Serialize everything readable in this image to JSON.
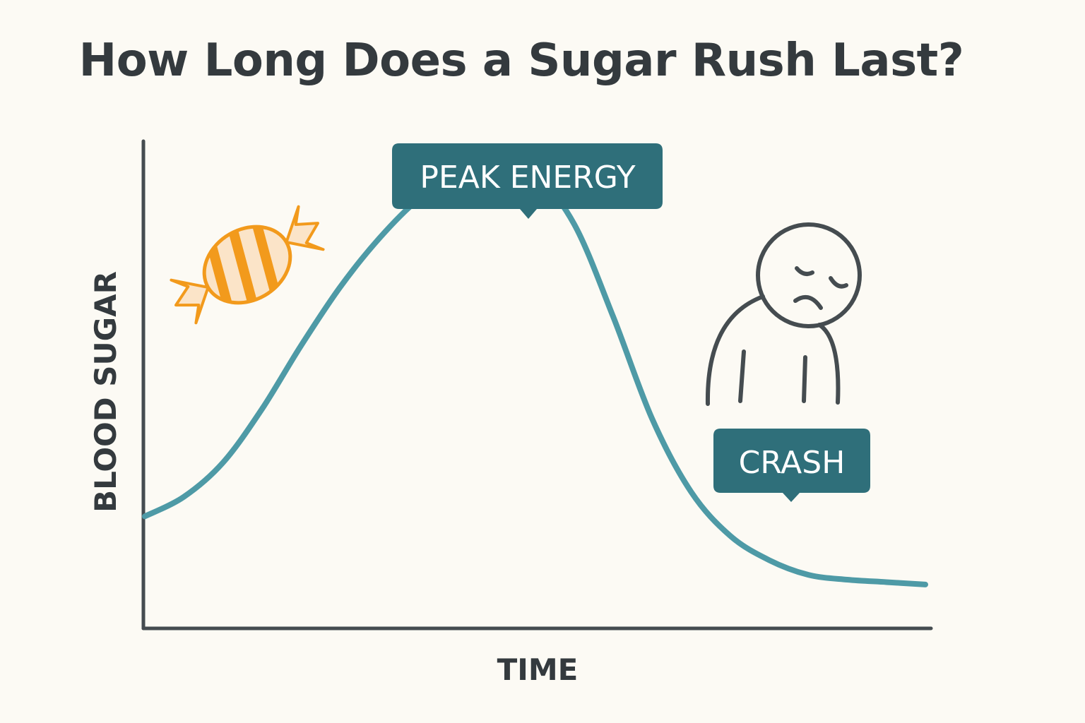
{
  "title": "How Long Does a Sugar Rush Last?",
  "colors": {
    "background": "#fcfaf4",
    "text": "#343a3e",
    "axis": "#454c50",
    "curve": "#4e9aa6",
    "callout": "#2f6f7a",
    "callout_text": "#ffffff",
    "candy_orange": "#f29a1c",
    "candy_light": "#fbe4c8",
    "figure": "#454c50"
  },
  "icons": {
    "candy": "candy-icon",
    "figure": "tired-person-icon"
  },
  "chart_data": {
    "type": "line",
    "xlabel": "TIME",
    "ylabel": "BLOOD SUGAR",
    "x_ticks": false,
    "y_ticks": false,
    "grid": false,
    "series": [
      {
        "x": [
          0,
          0.05,
          0.1,
          0.15,
          0.2,
          0.25,
          0.3,
          0.35,
          0.4,
          0.45,
          0.5,
          0.55,
          0.6,
          0.65,
          0.7,
          0.75,
          0.8,
          0.85,
          0.9,
          0.95,
          1.0
        ],
        "y": [
          0.23,
          0.27,
          0.34,
          0.45,
          0.58,
          0.7,
          0.8,
          0.88,
          0.93,
          0.95,
          0.93,
          0.83,
          0.64,
          0.43,
          0.28,
          0.19,
          0.14,
          0.11,
          0.1,
          0.095,
          0.09
        ]
      }
    ],
    "annotations": [
      {
        "text": "PEAK ENERGY",
        "x": 0.47,
        "y": 0.95
      },
      {
        "text": "CRASH",
        "x": 0.83,
        "y": 0.25
      }
    ]
  }
}
